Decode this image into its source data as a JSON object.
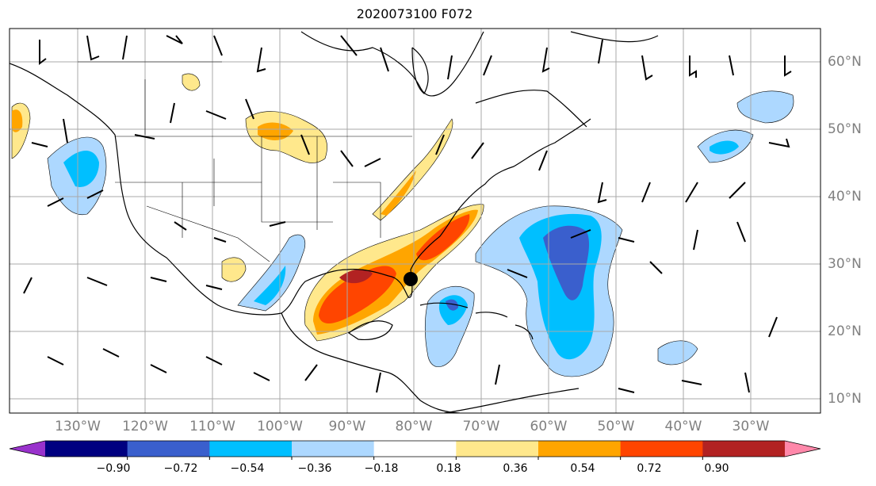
{
  "title": "2020073100 F072",
  "longitude_labels": [
    "130°W",
    "120°W",
    "110°W",
    "100°W",
    "90°W",
    "80°W",
    "70°W",
    "60°W",
    "50°W",
    "40°W",
    "30°W"
  ],
  "latitude_labels": [
    "60°N",
    "50°N",
    "40°N",
    "30°N",
    "20°N",
    "10°N"
  ],
  "colorbar": {
    "tick_labels": [
      "−0.90",
      "−0.72",
      "−0.54",
      "−0.36",
      "−0.18",
      "0.18",
      "0.36",
      "0.54",
      "0.72",
      "0.90"
    ],
    "colors": [
      "#9932cc",
      "#000080",
      "#3a5fcd",
      "#00bfff",
      "#add8ff",
      "#ffffff",
      "#ffe88c",
      "#ffa500",
      "#ff4500",
      "#b22222",
      "#ff88aa"
    ]
  },
  "marker": {
    "lon": -81.5,
    "lat": 28.0,
    "color": "#000000"
  }
}
